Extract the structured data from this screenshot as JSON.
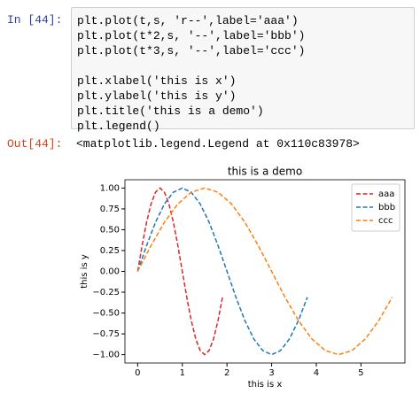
{
  "cell": {
    "in_prompt": "In [44]:",
    "code_blocks": [
      [
        "plt.plot(t,s, 'r--',label='aaa')",
        "plt.plot(t*2,s, '--',label='bbb')",
        "plt.plot(t*3,s, '--',label='ccc')"
      ],
      [
        "plt.xlabel('this is x')",
        "plt.ylabel('this is y')",
        "plt.title('this is a demo')",
        "plt.legend()"
      ]
    ],
    "out_prompt": "Out[44]:",
    "output": "<matplotlib.legend.Legend at 0x110c83978>"
  },
  "chart_data": {
    "type": "line",
    "title": "this is a demo",
    "x_label": "this is x",
    "y_label": "this is y",
    "legend": "upper right",
    "series": [
      {
        "name": "aaa",
        "color": "#d62728",
        "dash": true,
        "x": [
          0,
          0.1,
          0.2,
          0.3,
          0.4,
          0.5,
          0.6,
          0.7,
          0.8,
          0.9,
          1.0,
          1.1,
          1.2,
          1.3,
          1.4,
          1.5,
          1.6,
          1.7,
          1.8,
          1.9
        ],
        "values": [
          0,
          0.31,
          0.59,
          0.81,
          0.95,
          1,
          0.95,
          0.81,
          0.59,
          0.31,
          0,
          -0.31,
          -0.59,
          -0.81,
          -0.95,
          -1,
          -0.95,
          -0.81,
          -0.59,
          -0.31
        ]
      },
      {
        "name": "bbb",
        "color": "#1f77b4",
        "dash": true,
        "x": [
          0,
          0.2,
          0.4,
          0.6,
          0.8,
          1.0,
          1.2,
          1.4,
          1.6,
          1.8,
          2.0,
          2.2,
          2.4,
          2.6,
          2.8,
          3.0,
          3.2,
          3.4,
          3.6,
          3.8
        ],
        "values": [
          0,
          0.31,
          0.59,
          0.81,
          0.95,
          1,
          0.95,
          0.81,
          0.59,
          0.31,
          0,
          -0.31,
          -0.59,
          -0.81,
          -0.95,
          -1,
          -0.95,
          -0.81,
          -0.59,
          -0.31
        ]
      },
      {
        "name": "ccc",
        "color": "#ff7f0e",
        "dash": true,
        "x": [
          0,
          0.3,
          0.6,
          0.9,
          1.2,
          1.5,
          1.8,
          2.1,
          2.4,
          2.7,
          3.0,
          3.3,
          3.6,
          3.9,
          4.2,
          4.5,
          4.8,
          5.1,
          5.4,
          5.7
        ],
        "values": [
          0,
          0.31,
          0.59,
          0.81,
          0.95,
          1,
          0.95,
          0.81,
          0.59,
          0.31,
          0,
          -0.31,
          -0.59,
          -0.81,
          -0.95,
          -1,
          -0.95,
          -0.81,
          -0.59,
          -0.31
        ]
      }
    ],
    "xlim": [
      -0.285,
      5.985
    ],
    "ylim": [
      -1.1,
      1.1
    ],
    "xticks": [
      0,
      1,
      2,
      3,
      4,
      5
    ],
    "yticks": [
      {
        "value": -1,
        "label": "−1.00"
      },
      {
        "value": -0.75,
        "label": "−0.75"
      },
      {
        "value": -0.5,
        "label": "−0.50"
      },
      {
        "value": -0.25,
        "label": "−0.25"
      },
      {
        "value": 0,
        "label": "0.00"
      },
      {
        "value": 0.25,
        "label": "0.25"
      },
      {
        "value": 0.5,
        "label": "0.50"
      },
      {
        "value": 0.75,
        "label": "0.75"
      },
      {
        "value": 1,
        "label": "1.00"
      }
    ]
  }
}
